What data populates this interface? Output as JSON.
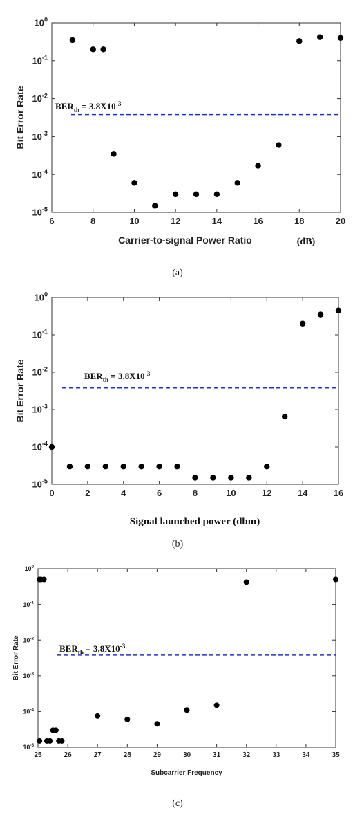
{
  "chart_data": [
    {
      "type": "scatter",
      "caption": "(a)",
      "xlabel": "Carrier-to-signal Power Ratio",
      "xlabel_unit": "(dB)",
      "ylabel": "Bit Error Rate",
      "yscale": "log",
      "xlim": [
        6,
        20
      ],
      "ylim": [
        1e-05,
        1
      ],
      "xticks": [
        "6",
        "8",
        "10",
        "12",
        "14",
        "16",
        "18",
        "20"
      ],
      "threshold": {
        "base": "BER",
        "sub": "th",
        "text": " = 3.8X10",
        "exp": "-3",
        "value": 0.0038,
        "color": "#2233cc"
      },
      "x": [
        7,
        8,
        8.5,
        9,
        10,
        11,
        12,
        13,
        14,
        15,
        16,
        17,
        18,
        19,
        20
      ],
      "y": [
        0.35,
        0.2,
        0.2,
        0.00035,
        6e-05,
        1.5e-05,
        3e-05,
        3e-05,
        3e-05,
        6e-05,
        0.00017,
        0.0006,
        0.33,
        0.42,
        0.4
      ]
    },
    {
      "type": "scatter",
      "caption": "(b)",
      "xlabel": "Signal launched power (dbm)",
      "ylabel": "Bit Error Rate",
      "yscale": "log",
      "xlim": [
        0,
        16
      ],
      "ylim": [
        1e-05,
        1
      ],
      "xticks": [
        "0",
        "2",
        "4",
        "6",
        "8",
        "10",
        "12",
        "14",
        "16"
      ],
      "threshold": {
        "base": "BER",
        "sub": "th",
        "text": " = 3.8X10",
        "exp": "-3",
        "value": 0.0038,
        "color": "#2233cc"
      },
      "x": [
        0,
        1,
        2,
        3,
        4,
        5,
        6,
        7,
        8,
        9,
        10,
        11,
        12,
        13,
        14,
        15,
        16
      ],
      "y": [
        0.0001,
        3e-05,
        3e-05,
        3e-05,
        3e-05,
        3e-05,
        3e-05,
        3e-05,
        1.5e-05,
        1.5e-05,
        1.5e-05,
        1.5e-05,
        3e-05,
        0.00065,
        0.2,
        0.35,
        0.45
      ]
    },
    {
      "type": "scatter",
      "caption": "(c)",
      "xlabel": "Subcarrier Frequency",
      "ylabel": "Bit Error Rate",
      "yscale": "log",
      "xlim": [
        25,
        35
      ],
      "ylim": [
        1e-05,
        1
      ],
      "xticks": [
        "25",
        "26",
        "27",
        "28",
        "29",
        "30",
        "31",
        "32",
        "33",
        "34",
        "35"
      ],
      "threshold": {
        "base": "BER",
        "sub": "th",
        "text": " = 3.8X10",
        "exp": "-3",
        "value": 0.0038,
        "color": "#2233cc"
      },
      "x": [
        25.05,
        25.1,
        25.2,
        25.3,
        25.4,
        25.5,
        25.6,
        25.7,
        25.8,
        25.05,
        27,
        28,
        29,
        30,
        31,
        32,
        35
      ],
      "y": [
        0.5,
        0.5,
        0.5,
        1.5e-05,
        1.5e-05,
        3e-05,
        3e-05,
        1.5e-05,
        1.5e-05,
        1.5e-05,
        7.5e-05,
        6e-05,
        4.5e-05,
        0.00011,
        0.00015,
        0.42,
        0.5
      ]
    }
  ]
}
